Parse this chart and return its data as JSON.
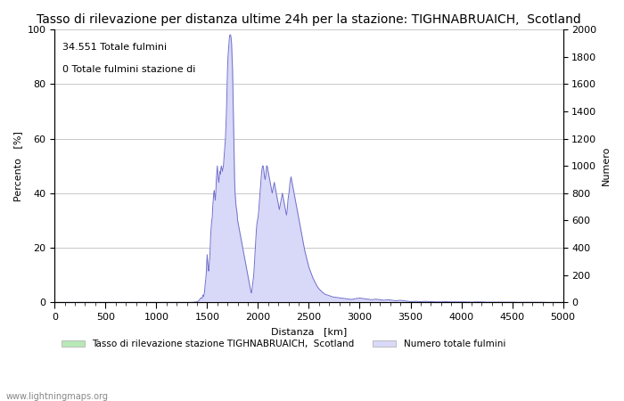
{
  "title": "Tasso di rilevazione per distanza ultime 24h per la stazione: TIGHNABRUAICH,  Scotland",
  "xlabel": "Distanza   [km]",
  "ylabel_left": "Percento   [%]",
  "ylabel_right": "Numero",
  "annotation_line1": "34.551 Totale fulmini",
  "annotation_line2": "0 Totale fulmini stazione di",
  "legend_label1": "Tasso di rilevazione stazione TIGHNABRUAICH,  Scotland",
  "legend_label2": "Numero totale fulmini",
  "watermark": "www.lightningmaps.org",
  "xlim": [
    0,
    5000
  ],
  "ylim_left": [
    0,
    100
  ],
  "ylim_right": [
    0,
    2000
  ],
  "fill_color_blue": "#d8d8f8",
  "fill_color_green": "#b8e8b8",
  "line_color_blue": "#7070cc",
  "line_color_green": "#80bb80",
  "background_color": "#ffffff",
  "grid_color": "#c8c8c8",
  "title_fontsize": 10,
  "axis_fontsize": 8,
  "tick_fontsize": 8,
  "x_ticks": [
    0,
    500,
    1000,
    1500,
    2000,
    2500,
    3000,
    3500,
    4000,
    4500,
    5000
  ],
  "y_ticks_left": [
    0,
    20,
    40,
    60,
    80,
    100
  ],
  "y_ticks_right": [
    0,
    200,
    400,
    600,
    800,
    1000,
    1200,
    1400,
    1600,
    1800,
    2000
  ],
  "num_x": [
    0,
    25,
    50,
    75,
    100,
    125,
    150,
    175,
    200,
    225,
    250,
    275,
    300,
    325,
    350,
    375,
    400,
    425,
    450,
    475,
    500,
    525,
    550,
    575,
    600,
    625,
    650,
    675,
    700,
    725,
    750,
    775,
    800,
    825,
    850,
    875,
    900,
    925,
    950,
    975,
    1000,
    1025,
    1050,
    1075,
    1100,
    1125,
    1150,
    1175,
    1200,
    1225,
    1250,
    1275,
    1300,
    1325,
    1350,
    1375,
    1400,
    1425,
    1450,
    1475,
    1500,
    1525,
    1550,
    1575,
    1600,
    1625,
    1650,
    1675,
    1700,
    1725,
    1750,
    1775,
    1800,
    1825,
    1850,
    1875,
    1900,
    1925,
    1950,
    1975,
    2000,
    2025,
    2050,
    2075,
    2100,
    2125,
    2150,
    2175,
    2200,
    2225,
    2250,
    2275,
    2300,
    2325,
    2350,
    2375,
    2400,
    2425,
    2450,
    2475,
    2500,
    2525,
    2550,
    2575,
    2600,
    2625,
    2650,
    2675,
    2700,
    2725,
    2750,
    2775,
    2800,
    2825,
    2850,
    2875,
    2900,
    2925,
    2950,
    2975,
    3000,
    3025,
    3050,
    3075,
    3100,
    3125,
    3150,
    3175,
    3200,
    3225,
    3250,
    3275,
    3300,
    3325,
    3350,
    3375,
    3400,
    3425,
    3450,
    3475,
    3500,
    3525,
    3550,
    3575,
    3600,
    3625,
    3650,
    3675,
    3700,
    3725,
    3750,
    3775,
    3800,
    3825,
    3850,
    3875,
    3900,
    3925,
    3950,
    3975,
    4000,
    4025,
    4050,
    4075,
    4100,
    4125,
    4150,
    4175,
    4200,
    4225,
    4250,
    4275,
    4300,
    4325,
    4350,
    4375,
    4400,
    4425,
    4450,
    4475,
    4500,
    4525,
    4550,
    4575,
    4600,
    4625,
    4650,
    4675,
    4700,
    4725,
    4750,
    4775,
    4800,
    4825,
    4850,
    4875,
    4900,
    4925,
    4950,
    4975,
    5000
  ],
  "num_y": [
    0,
    0,
    0,
    0,
    0,
    0,
    0,
    0,
    0,
    0,
    0,
    0,
    0,
    0,
    0,
    0,
    0,
    0,
    0,
    0,
    0,
    0,
    0,
    0,
    0,
    0,
    0,
    0,
    0,
    0,
    0,
    0,
    0,
    0,
    0,
    0,
    0,
    0,
    0,
    0,
    0,
    0,
    0,
    0,
    0,
    0,
    0,
    0,
    0,
    0,
    0,
    0,
    0,
    0,
    0,
    0,
    2,
    4,
    8,
    30,
    80,
    200,
    350,
    450,
    600,
    700,
    780,
    900,
    1000,
    1200,
    1960,
    1100,
    800,
    600,
    500,
    400,
    320,
    270,
    200,
    150,
    100,
    150,
    200,
    350,
    500,
    600,
    800,
    900,
    1000,
    900,
    800,
    700,
    600,
    900,
    1000,
    900,
    800,
    700,
    700,
    800,
    700,
    600,
    500,
    450,
    350,
    300,
    250,
    200,
    180,
    160,
    140,
    120,
    100,
    90,
    80,
    70,
    60,
    50,
    45,
    40,
    35,
    30,
    28,
    25,
    22,
    20,
    30,
    40,
    60,
    50,
    40,
    35,
    30,
    25,
    20,
    40,
    60,
    80,
    70,
    60,
    50,
    40,
    30,
    30,
    20,
    20,
    20,
    15,
    15,
    10,
    10,
    8,
    8,
    6,
    10,
    12,
    8,
    6,
    5,
    5,
    5,
    4,
    4,
    3,
    3,
    3,
    2,
    2,
    2,
    2,
    2,
    2,
    2,
    2,
    1,
    1,
    1,
    1,
    1,
    1,
    1,
    1,
    1,
    1,
    1,
    1,
    0,
    0,
    0,
    0,
    0,
    0,
    0,
    0,
    0,
    0,
    0,
    0,
    0,
    0,
    0,
    0,
    0,
    0,
    0,
    0,
    0
  ]
}
